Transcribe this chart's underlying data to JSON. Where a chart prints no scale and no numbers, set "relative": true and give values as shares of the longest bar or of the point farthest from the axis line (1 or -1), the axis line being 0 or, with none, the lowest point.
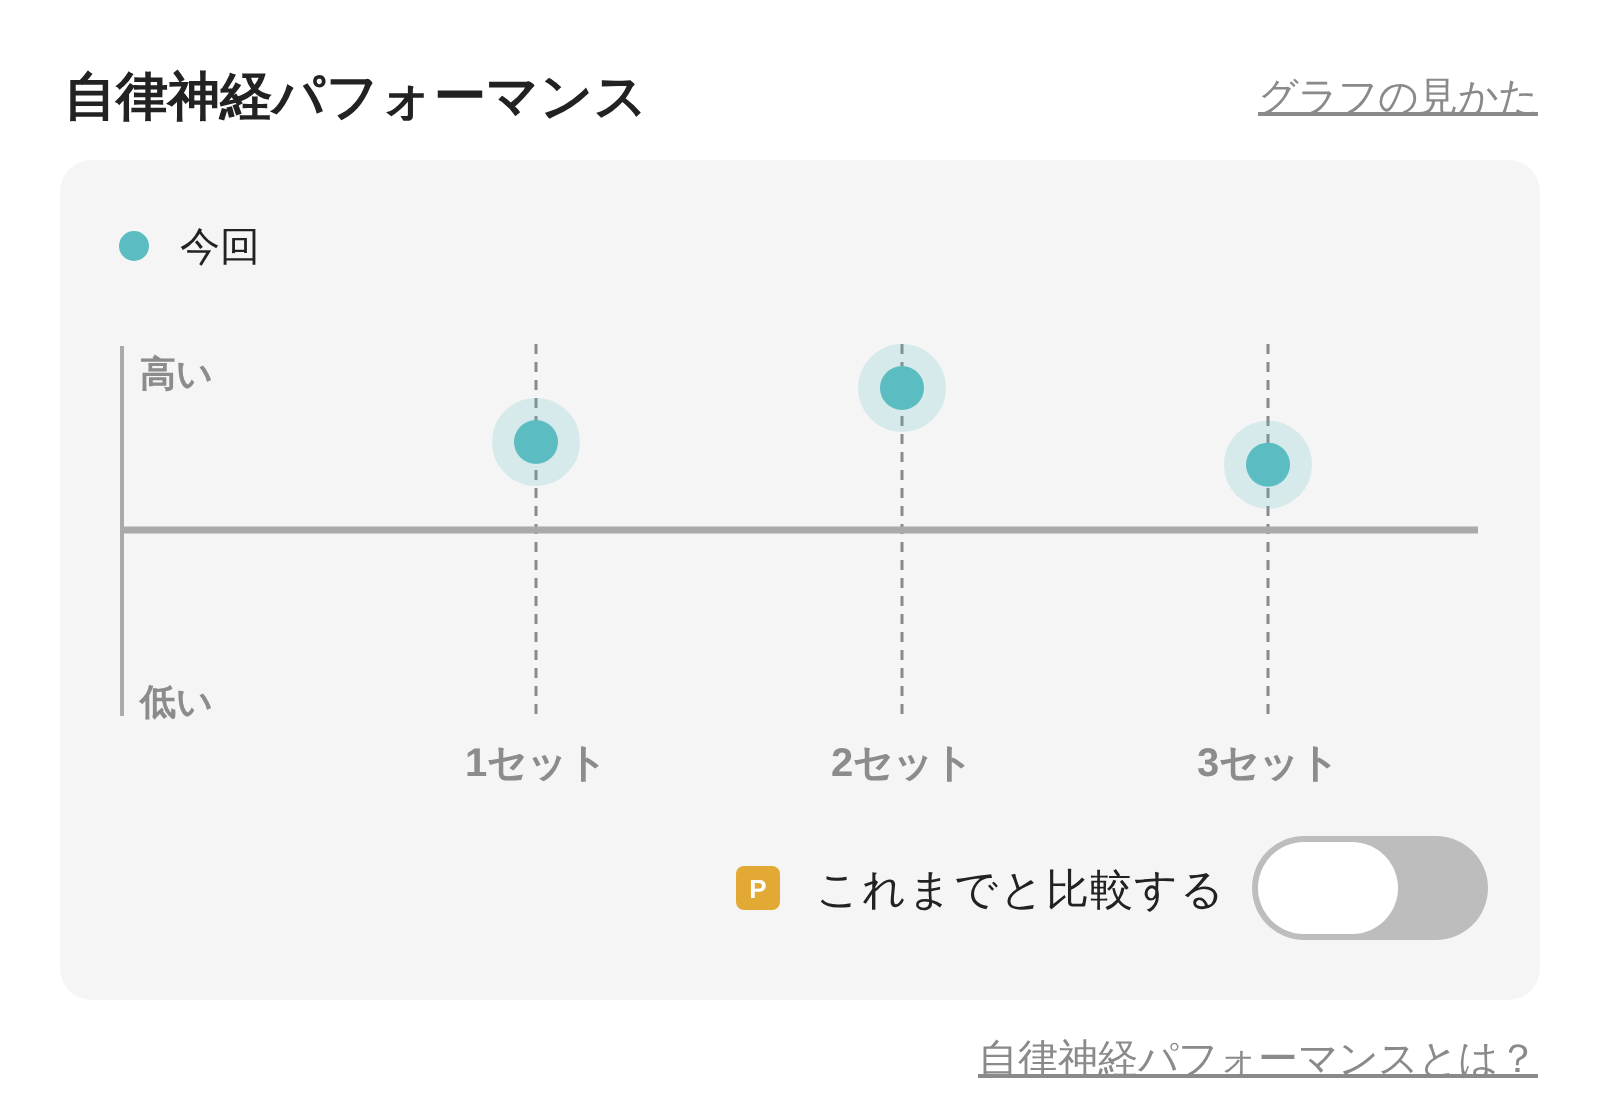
{
  "chart_data": {
    "type": "scatter",
    "title": "自律神経パフォーマンス",
    "categories": [
      "1セット",
      "2セット",
      "3セット"
    ],
    "series": [
      {
        "name": "今回",
        "color": "#5bbcc2",
        "values": [
          0.62,
          1,
          0.46
        ]
      }
    ],
    "relative": true,
    "marker": "circle",
    "grid": "x",
    "legend": "top left",
    "annotations": [
      "グラフの見かた",
      "高い",
      "低い",
      "P",
      "これまでと比較する",
      "自律神経パフォーマンスとは？"
    ]
  }
}
